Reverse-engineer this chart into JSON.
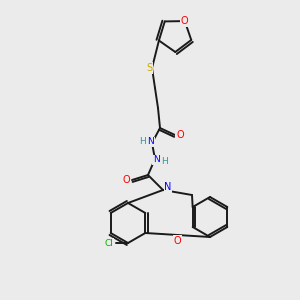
{
  "bg_color": "#ebebeb",
  "bond_color": "#1a1a1a",
  "atom_colors": {
    "O": "#ff0000",
    "N": "#0000ff",
    "S": "#ccaa00",
    "Cl": "#00aa00",
    "C": "#1a1a1a",
    "H": "#2a9a9a"
  },
  "figsize": [
    3.0,
    3.0
  ],
  "dpi": 100
}
